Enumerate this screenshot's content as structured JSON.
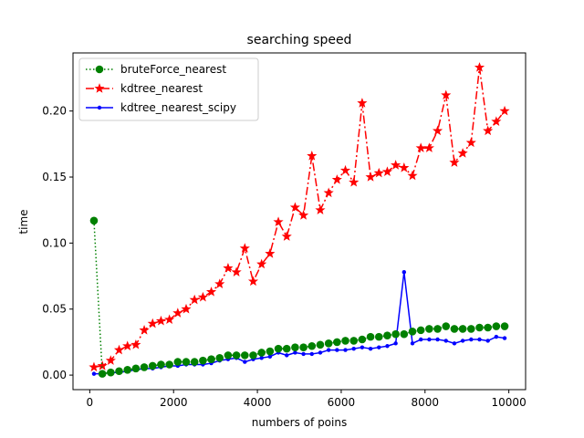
{
  "chart_data": {
    "type": "line",
    "title": "searching speed",
    "xlabel": "numbers of poins",
    "ylabel": "time",
    "xlim": [
      -400,
      10400
    ],
    "ylim": [
      -0.011,
      0.244
    ],
    "xticks": [
      0,
      2000,
      4000,
      6000,
      8000,
      10000
    ],
    "yticks": [
      0.0,
      0.05,
      0.1,
      0.15,
      0.2
    ],
    "xtick_labels": [
      "0",
      "2000",
      "4000",
      "6000",
      "8000",
      "10000"
    ],
    "ytick_labels": [
      "0.00",
      "0.05",
      "0.10",
      "0.15",
      "0.20"
    ],
    "grid": false,
    "legend": "top-left",
    "x": [
      100,
      300,
      500,
      700,
      900,
      1100,
      1300,
      1500,
      1700,
      1900,
      2100,
      2300,
      2500,
      2700,
      2900,
      3100,
      3300,
      3500,
      3700,
      3900,
      4100,
      4300,
      4500,
      4700,
      4900,
      5100,
      5300,
      5500,
      5700,
      5900,
      6100,
      6300,
      6500,
      6700,
      6900,
      7100,
      7300,
      7500,
      7700,
      7900,
      8100,
      8300,
      8500,
      8700,
      8900,
      9100,
      9300,
      9500,
      9700,
      9900
    ],
    "series": [
      {
        "name": "bruteForce_nearest",
        "color": "#008000",
        "linestyle": "dotted",
        "marker": "circle",
        "values": [
          0.117,
          0.001,
          0.002,
          0.003,
          0.004,
          0.005,
          0.006,
          0.007,
          0.008,
          0.008,
          0.01,
          0.01,
          0.01,
          0.011,
          0.012,
          0.013,
          0.015,
          0.015,
          0.015,
          0.015,
          0.017,
          0.018,
          0.02,
          0.02,
          0.021,
          0.021,
          0.022,
          0.023,
          0.024,
          0.025,
          0.026,
          0.026,
          0.027,
          0.029,
          0.029,
          0.03,
          0.031,
          0.031,
          0.033,
          0.034,
          0.035,
          0.035,
          0.037,
          0.035,
          0.035,
          0.035,
          0.036,
          0.036,
          0.037,
          0.037
        ]
      },
      {
        "name": "kdtree_nearest",
        "color": "#ff0000",
        "linestyle": "dashdot",
        "marker": "star",
        "values": [
          0.006,
          0.007,
          0.011,
          0.019,
          0.022,
          0.023,
          0.034,
          0.039,
          0.041,
          0.042,
          0.047,
          0.05,
          0.057,
          0.059,
          0.063,
          0.069,
          0.081,
          0.078,
          0.096,
          0.071,
          0.084,
          0.092,
          0.116,
          0.105,
          0.127,
          0.121,
          0.166,
          0.125,
          0.138,
          0.148,
          0.155,
          0.146,
          0.206,
          0.15,
          0.153,
          0.154,
          0.159,
          0.157,
          0.151,
          0.172,
          0.172,
          0.185,
          0.212,
          0.161,
          0.168,
          0.176,
          0.233,
          0.185,
          0.192,
          0.2
        ]
      },
      {
        "name": "kdtree_nearest_scipy",
        "color": "#0000ff",
        "linestyle": "solid",
        "marker": "dot",
        "values": [
          0.001,
          0.001,
          0.002,
          0.002,
          0.003,
          0.004,
          0.005,
          0.005,
          0.006,
          0.007,
          0.007,
          0.008,
          0.008,
          0.008,
          0.009,
          0.011,
          0.012,
          0.013,
          0.01,
          0.012,
          0.013,
          0.014,
          0.017,
          0.015,
          0.017,
          0.016,
          0.016,
          0.017,
          0.019,
          0.019,
          0.019,
          0.02,
          0.021,
          0.02,
          0.021,
          0.022,
          0.024,
          0.078,
          0.024,
          0.027,
          0.027,
          0.027,
          0.026,
          0.024,
          0.026,
          0.027,
          0.027,
          0.026,
          0.029,
          0.028
        ]
      }
    ]
  }
}
